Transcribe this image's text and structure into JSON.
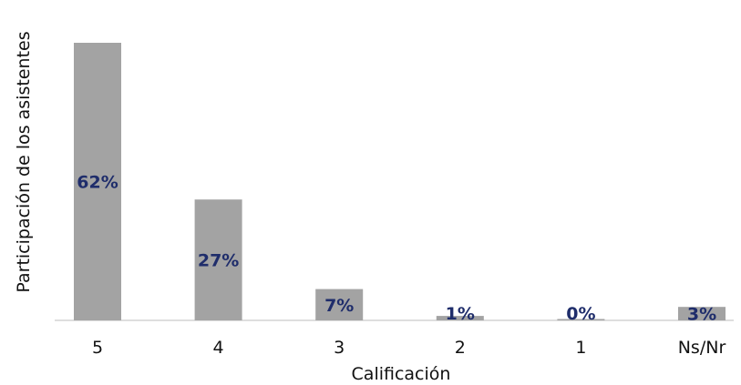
{
  "chart_data": {
    "type": "bar",
    "categories": [
      "5",
      "4",
      "3",
      "2",
      "1",
      "Ns/Nr"
    ],
    "values": [
      62,
      27,
      7,
      1,
      0,
      3
    ],
    "value_labels": [
      "62%",
      "27%",
      "7%",
      "1%",
      "0%",
      "3%"
    ],
    "xlabel": "Calificación",
    "ylabel": "Participación de los asistentes",
    "ylim": [
      0,
      62
    ],
    "grid": false,
    "legend": "none",
    "colors": {
      "bar": "#a3a3a3",
      "data_label": "#1f2d6b",
      "baseline": "#bdbdbd"
    }
  }
}
